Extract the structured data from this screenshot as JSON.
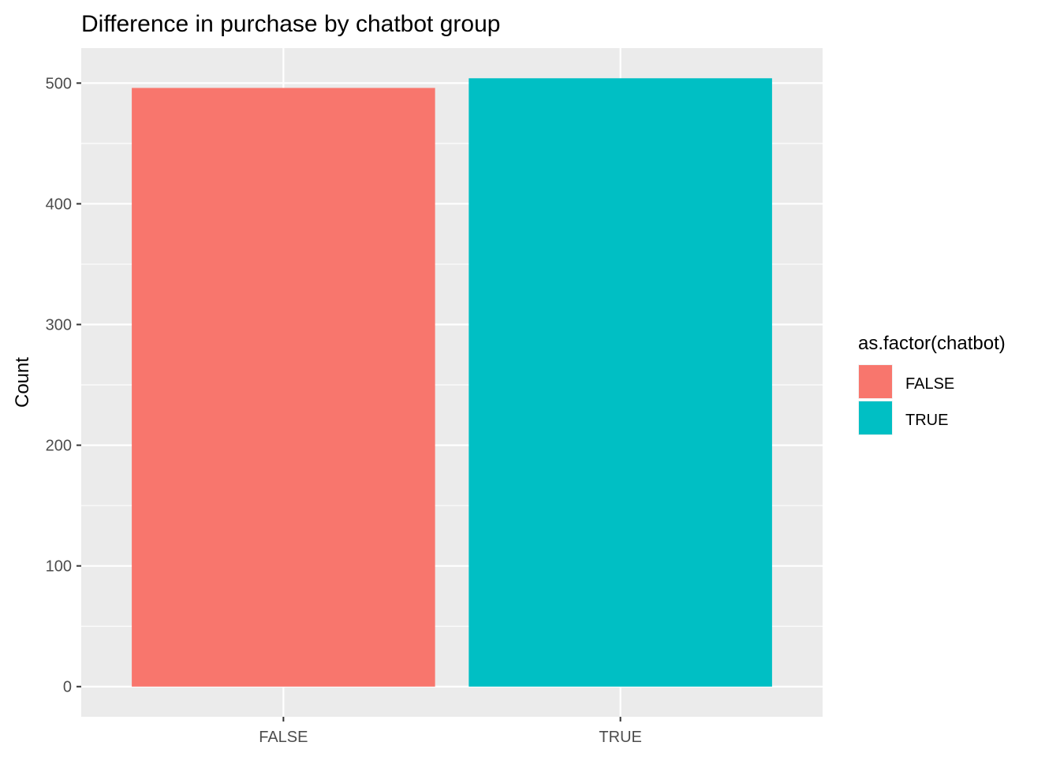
{
  "chart_data": {
    "type": "bar",
    "title": "Difference in purchase by chatbot group",
    "xlabel": "",
    "ylabel": "Count",
    "categories": [
      "FALSE",
      "TRUE"
    ],
    "values": [
      496,
      504
    ],
    "ylim": [
      -25,
      529
    ],
    "yticks": [
      0,
      100,
      200,
      300,
      400,
      500
    ],
    "grid": true,
    "legend": {
      "title": "as.factor(chatbot)",
      "position": "right",
      "entries": [
        {
          "label": "FALSE",
          "color": "#F8766D"
        },
        {
          "label": "TRUE",
          "color": "#00BFC4"
        }
      ]
    },
    "colors": [
      "#F8766D",
      "#00BFC4"
    ],
    "panel_background": "#EBEBEB",
    "grid_color": "#FFFFFF"
  }
}
